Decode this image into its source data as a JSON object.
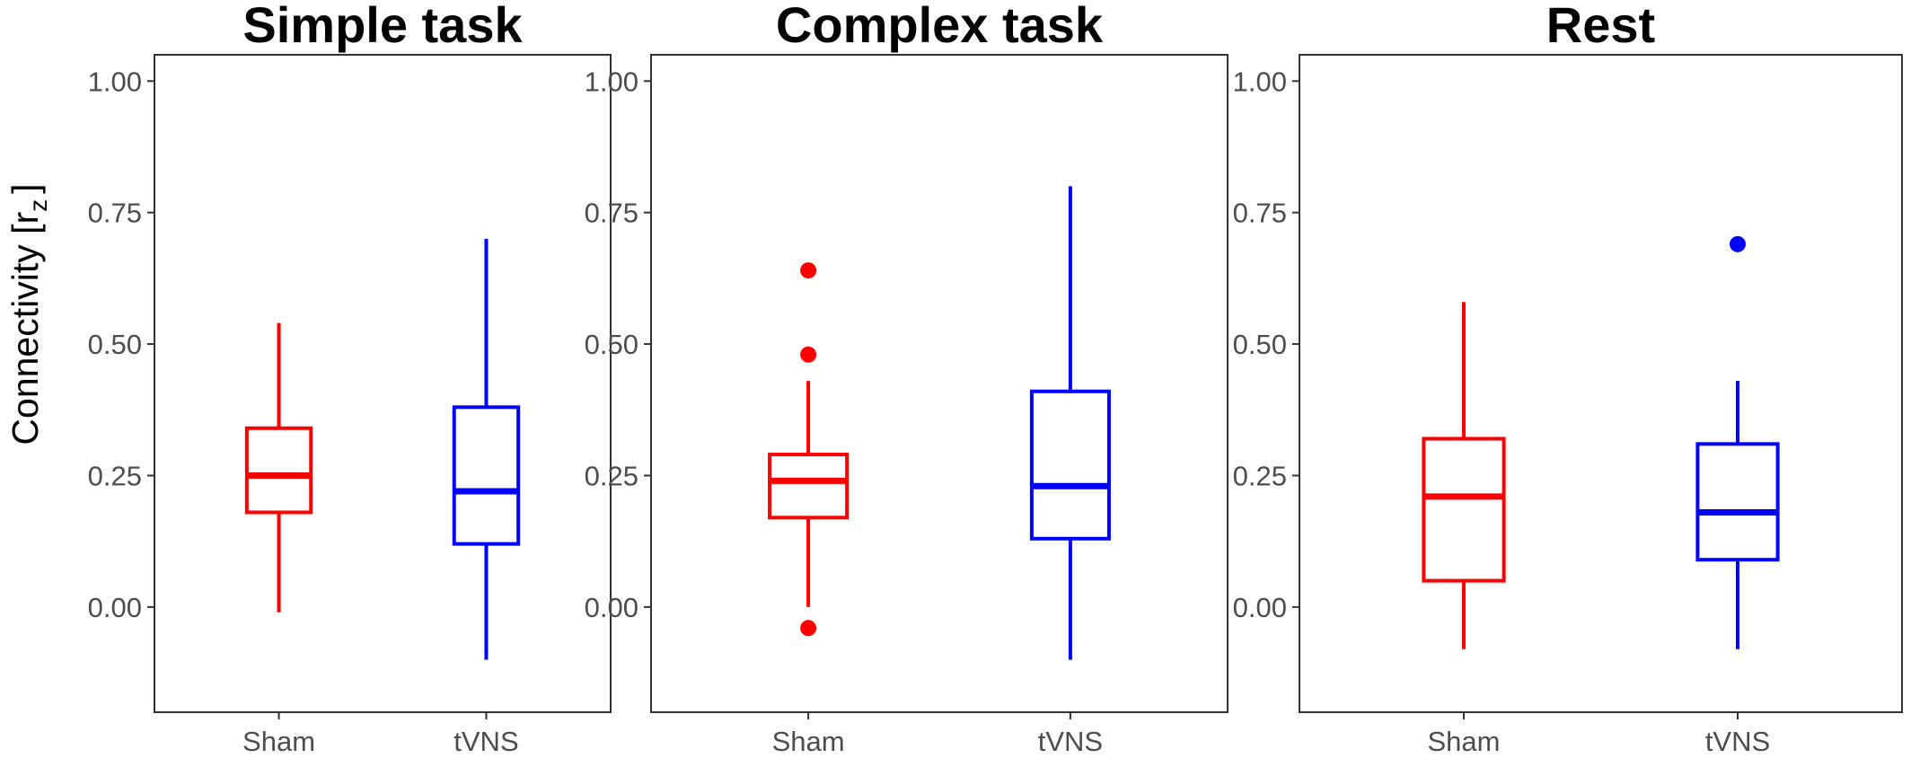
{
  "colors": {
    "Sham": "#ff0000",
    "tVNS": "#0000ff",
    "tick_text": "#4d4d4d",
    "border": "#333333"
  },
  "y_axis": {
    "label_main": "Connectivity [r",
    "label_sub": "z",
    "label_close": "]",
    "ticks": [
      0,
      0.25,
      0.5,
      0.75,
      1
    ],
    "tick_labels": [
      "0.00",
      "0.25",
      "0.50",
      "0.75",
      "1.00"
    ],
    "ylim": [
      -0.2,
      1.05
    ]
  },
  "chart_data": [
    {
      "type": "box",
      "title": "Simple task",
      "categories": [
        "Sham",
        "tVNS"
      ],
      "boxes": [
        {
          "group": "Sham",
          "min": -0.01,
          "q1": 0.18,
          "median": 0.25,
          "q3": 0.34,
          "max": 0.54,
          "outliers": []
        },
        {
          "group": "tVNS",
          "min": -0.1,
          "q1": 0.12,
          "median": 0.22,
          "q3": 0.38,
          "max": 0.7,
          "outliers": []
        }
      ]
    },
    {
      "type": "box",
      "title": "Complex task",
      "categories": [
        "Sham",
        "tVNS"
      ],
      "boxes": [
        {
          "group": "Sham",
          "min": 0.0,
          "q1": 0.17,
          "median": 0.24,
          "q3": 0.29,
          "max": 0.43,
          "outliers": [
            0.64,
            0.48,
            -0.04
          ]
        },
        {
          "group": "tVNS",
          "min": -0.1,
          "q1": 0.13,
          "median": 0.23,
          "q3": 0.41,
          "max": 0.8,
          "outliers": []
        }
      ]
    },
    {
      "type": "box",
      "title": "Rest",
      "categories": [
        "Sham",
        "tVNS"
      ],
      "boxes": [
        {
          "group": "Sham",
          "min": -0.08,
          "q1": 0.05,
          "median": 0.21,
          "q3": 0.32,
          "max": 0.58,
          "outliers": []
        },
        {
          "group": "tVNS",
          "min": -0.08,
          "q1": 0.09,
          "median": 0.18,
          "q3": 0.31,
          "max": 0.43,
          "outliers": [
            0.69
          ]
        }
      ]
    }
  ]
}
